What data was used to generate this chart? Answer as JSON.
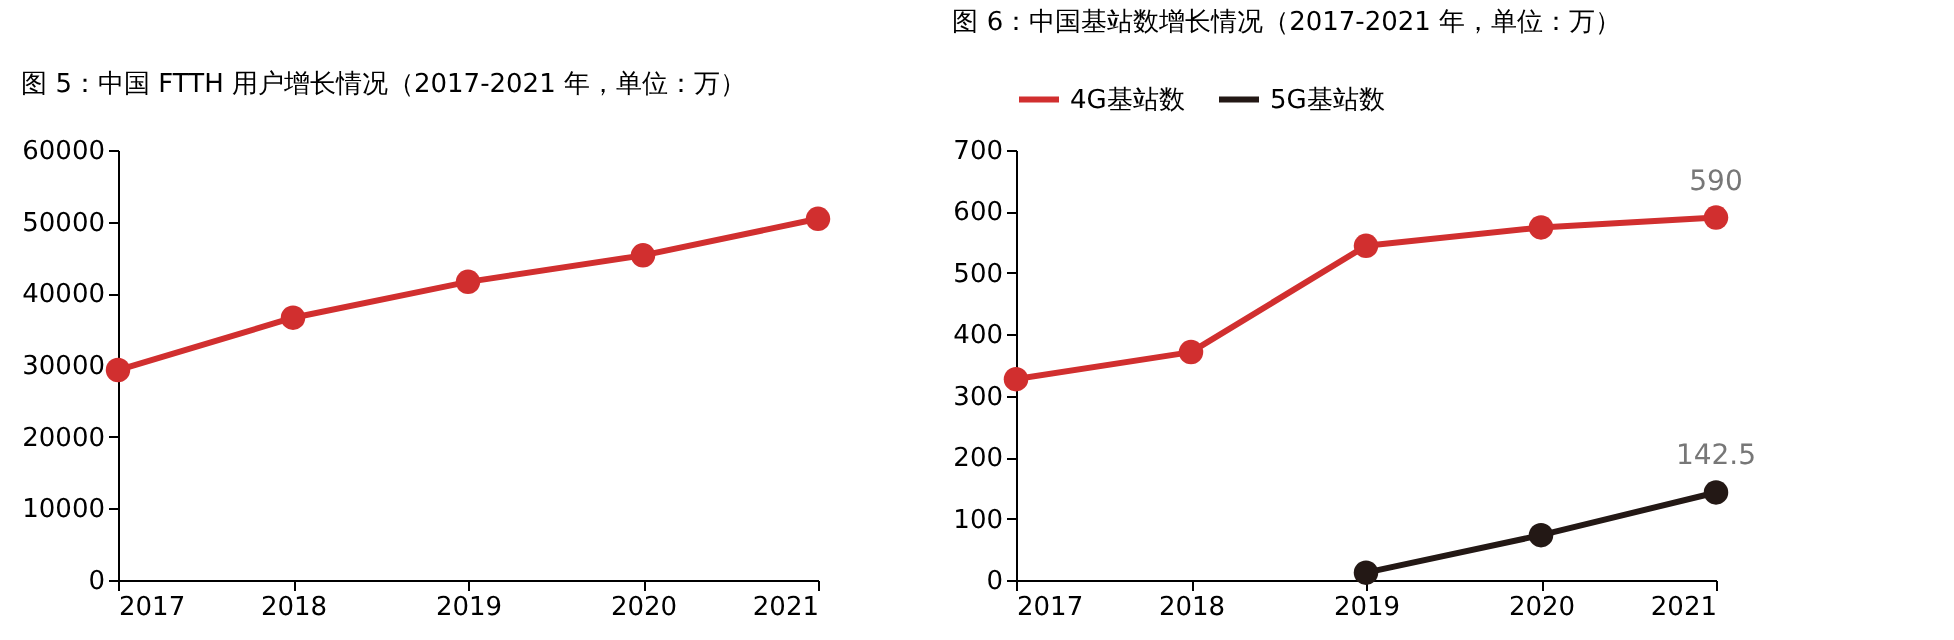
{
  "chart_data": [
    {
      "type": "line",
      "title": "图 5：中国 FTTH 用户增长情况（2017-2021 年，单位：万）",
      "categories": [
        "2017",
        "2018",
        "2019",
        "2020",
        "2021"
      ],
      "series": [
        {
          "color": "#d12f2f",
          "values": [
            29300,
            36600,
            41600,
            45300,
            50400
          ]
        }
      ],
      "ylim": [
        0,
        60000
      ],
      "yticks": [
        0,
        10000,
        20000,
        30000,
        40000,
        50000,
        60000
      ],
      "marker": "circle",
      "line_style": "solid",
      "grid": false,
      "legend": false
    },
    {
      "type": "line",
      "title": "图 6：中国基站数增长情况（2017-2021 年，单位：万）",
      "categories": [
        "2017",
        "2018",
        "2019",
        "2020",
        "2021"
      ],
      "series": [
        {
          "name": "4G基站数",
          "color": "#d12f2f",
          "values": [
            327,
            371,
            544,
            574,
            590
          ],
          "value_labels": [
            null,
            null,
            null,
            null,
            "590"
          ]
        },
        {
          "name": "5G基站数",
          "color": "#231815",
          "values": [
            null,
            null,
            12,
            73,
            142.5
          ],
          "value_labels": [
            null,
            null,
            null,
            null,
            "142.5"
          ]
        }
      ],
      "ylim": [
        0,
        700
      ],
      "yticks": [
        0,
        100,
        200,
        300,
        400,
        500,
        600,
        700
      ],
      "marker": "circle",
      "line_style": "solid",
      "grid": false,
      "legend": "top"
    }
  ]
}
